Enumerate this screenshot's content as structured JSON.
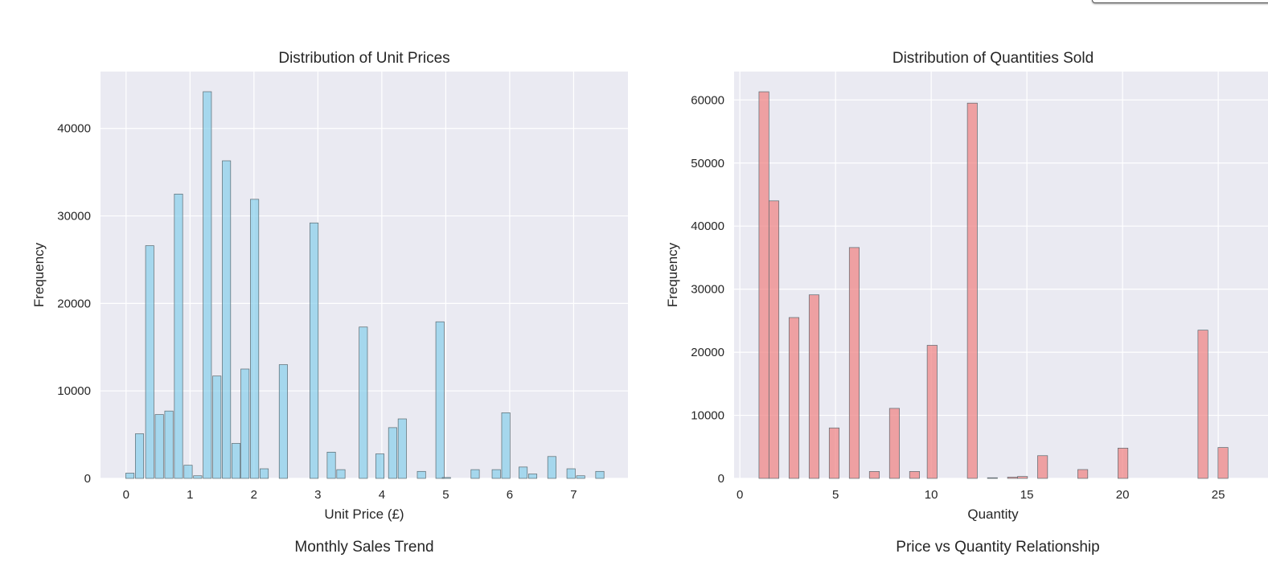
{
  "chart_data": [
    {
      "type": "bar",
      "title": "Distribution of Unit Prices",
      "xlabel": "Unit Price (£)",
      "ylabel": "Frequency",
      "xlim": [
        -0.4,
        7.85
      ],
      "ylim": [
        0,
        46500
      ],
      "xticks": [
        0,
        1,
        2,
        3,
        4,
        5,
        6,
        7
      ],
      "yticks": [
        0,
        10000,
        20000,
        30000,
        40000
      ],
      "grid": true,
      "bar_color": "#87ceeb",
      "bin_width": 0.13,
      "x": [
        0.06,
        0.21,
        0.37,
        0.52,
        0.67,
        0.82,
        0.97,
        1.12,
        1.27,
        1.42,
        1.57,
        1.72,
        1.86,
        2.01,
        2.16,
        2.46,
        2.94,
        3.21,
        3.36,
        3.71,
        3.97,
        4.17,
        4.32,
        4.62,
        4.91,
        5.01,
        5.46,
        5.79,
        5.94,
        6.21,
        6.36,
        6.66,
        6.96,
        7.11,
        7.41
      ],
      "values": [
        600,
        5100,
        26600,
        7300,
        7700,
        32500,
        1500,
        300,
        44200,
        11700,
        36300,
        4000,
        12500,
        31900,
        1100,
        13000,
        29200,
        3000,
        1000,
        17300,
        2800,
        5800,
        6800,
        800,
        17900,
        100,
        1000,
        1000,
        7500,
        1300,
        500,
        2500,
        1100,
        300,
        800
      ]
    },
    {
      "type": "bar",
      "title": "Distribution of Quantities Sold",
      "xlabel": "Quantity",
      "ylabel": "Frequency",
      "xlim": [
        -0.3,
        27.6
      ],
      "ylim": [
        0,
        64500
      ],
      "xticks": [
        0,
        5,
        10,
        15,
        20,
        25
      ],
      "yticks": [
        0,
        10000,
        20000,
        30000,
        40000,
        50000,
        60000
      ],
      "grid": true,
      "bar_color": "#f08080",
      "bin_width": 0.52,
      "x": [
        1.26,
        1.78,
        2.83,
        3.88,
        4.93,
        5.98,
        7.03,
        8.08,
        9.13,
        10.05,
        12.15,
        13.2,
        14.25,
        14.77,
        15.82,
        17.92,
        20.02,
        24.2,
        25.25
      ],
      "values": [
        61300,
        44000,
        25500,
        29100,
        8000,
        36600,
        1100,
        11100,
        1100,
        21100,
        59500,
        100,
        200,
        300,
        3600,
        1400,
        4800,
        23500,
        4900
      ]
    },
    {
      "type": "line",
      "title": "Monthly Sales Trend"
    },
    {
      "type": "scatter",
      "title": "Price vs Quantity Relationship"
    }
  ]
}
